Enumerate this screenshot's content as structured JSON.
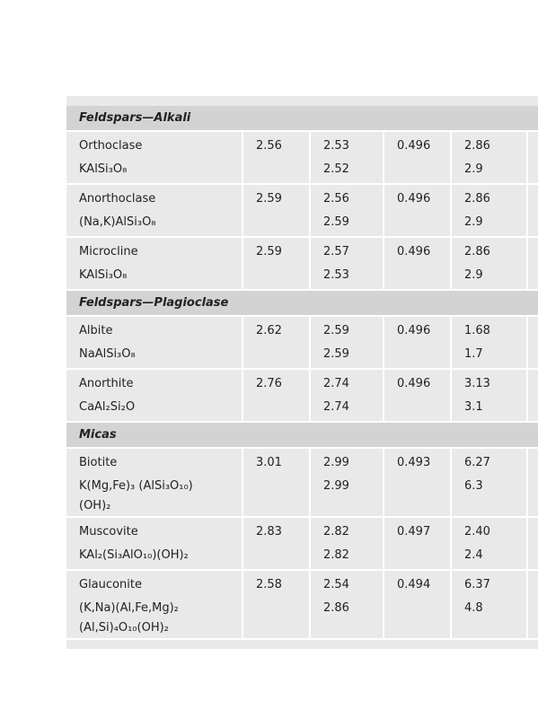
{
  "sections": [
    {
      "title": "Feldspars—Alkali",
      "rows": [
        {
          "name": "Orthoclase",
          "formula": [
            "KAlSi₃O₈"
          ],
          "values": [
            "2.56",
            [
              "2.53",
              "2.52"
            ],
            "0.496",
            [
              "2.86",
              "2.9"
            ]
          ]
        },
        {
          "name": "Anorthoclase",
          "formula": [
            "(Na,K)AlSi₃O₈"
          ],
          "values": [
            "2.59",
            [
              "2.56",
              "2.59"
            ],
            "0.496",
            [
              "2.86",
              "2.9"
            ]
          ]
        },
        {
          "name": "Microcline",
          "formula": [
            "KAlSi₃O₈"
          ],
          "values": [
            "2.59",
            [
              "2.57",
              "2.53"
            ],
            "0.496",
            [
              "2.86",
              "2.9"
            ]
          ]
        }
      ]
    },
    {
      "title": "Feldspars—Plagioclase",
      "rows": [
        {
          "name": "Albite",
          "formula": [
            "NaAlSi₃O₈"
          ],
          "values": [
            "2.62",
            [
              "2.59",
              "2.59"
            ],
            "0.496",
            [
              "1.68",
              "1.7"
            ]
          ]
        },
        {
          "name": "Anorthite",
          "formula": [
            "CaAl₂Si₂O"
          ],
          "values": [
            "2.76",
            [
              "2.74",
              "2.74"
            ],
            "0.496",
            [
              "3.13",
              "3.1"
            ]
          ]
        }
      ]
    },
    {
      "title": "Micas",
      "rows": [
        {
          "name": "Biotite",
          "formula": [
            "K(Mg,Fe)₃ (AlSi₃O₁₀)",
            "(OH)₂"
          ],
          "values": [
            "3.01",
            [
              "2.99",
              "2.99"
            ],
            "0.493",
            [
              "6.27",
              "6.3"
            ]
          ]
        },
        {
          "name": "Muscovite",
          "formula": [
            "KAl₂(Si₃AlO₁₀)(OH)₂"
          ],
          "values": [
            "2.83",
            [
              "2.82",
              "2.82"
            ],
            "0.497",
            [
              "2.40",
              "2.4"
            ]
          ]
        },
        {
          "name": "Glauconite",
          "formula": [
            "(K,Na)(Al,Fe,Mg)₂",
            "(Al,Si)₄O₁₀(OH)₂"
          ],
          "values": [
            "2.58",
            [
              "2.54",
              "2.86"
            ],
            "0.494",
            [
              "6.37",
              "4.8"
            ]
          ]
        }
      ]
    }
  ]
}
